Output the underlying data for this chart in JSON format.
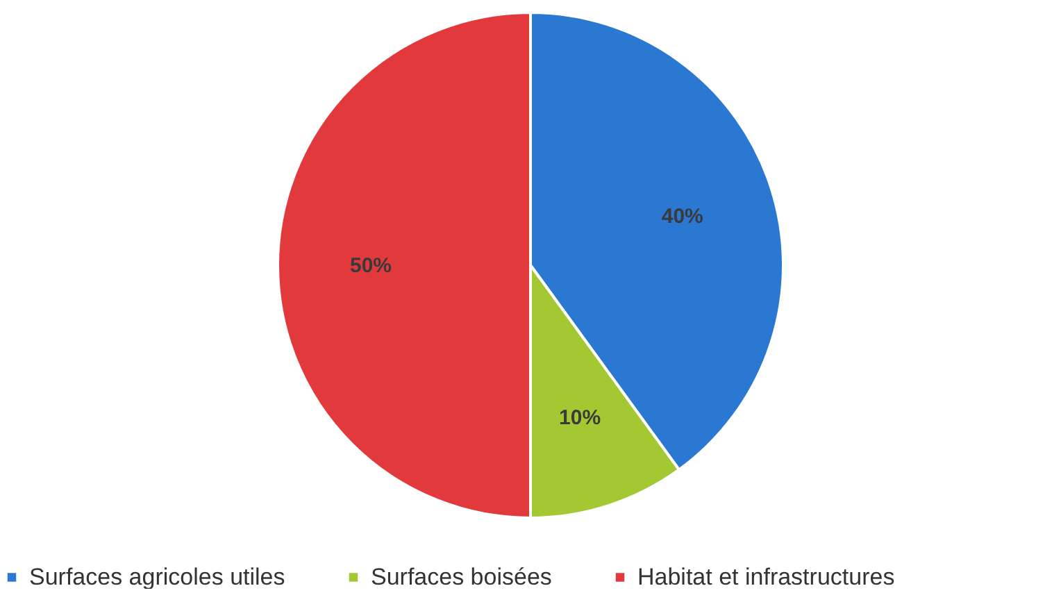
{
  "chart_data": {
    "type": "pie",
    "categories": [
      "Surfaces agricoles utiles",
      "Surfaces boisées",
      "Habitat et infrastructures"
    ],
    "values": [
      40,
      10,
      50
    ],
    "colors": [
      "#2a78d2",
      "#a4c832",
      "#e23a3c"
    ],
    "value_labels": [
      "40%",
      "10%",
      "50%"
    ],
    "legend": "bottom"
  }
}
